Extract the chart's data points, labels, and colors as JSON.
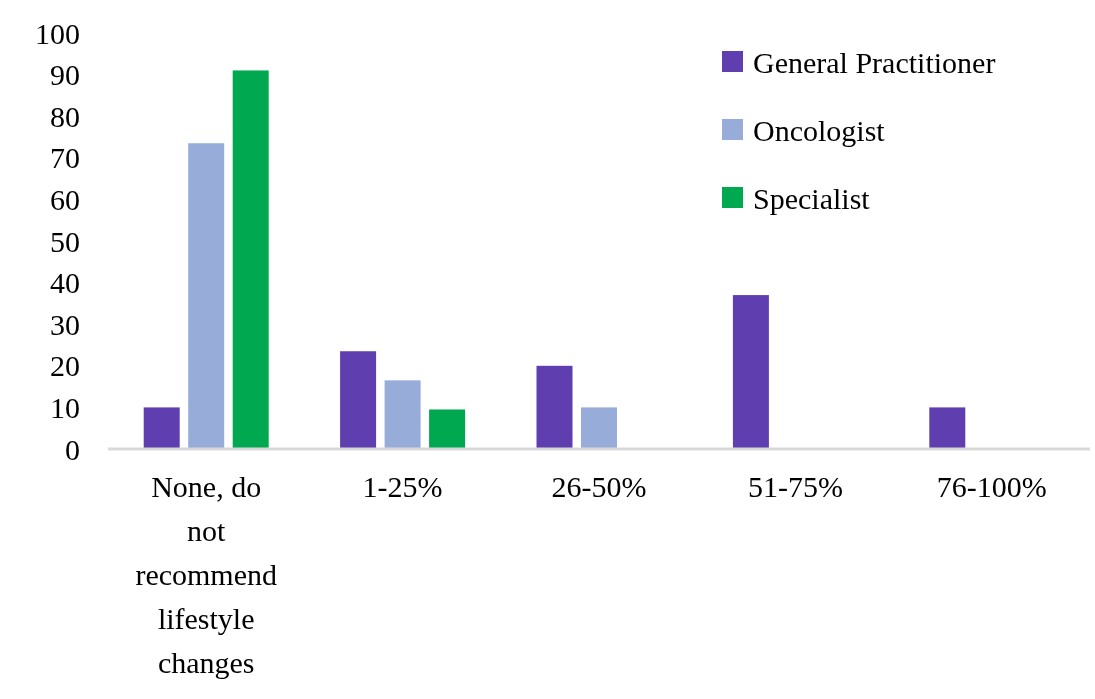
{
  "chart_data": {
    "type": "bar",
    "categories": [
      "None, do not recommend lifestyle changes",
      "1-25%",
      "26-50%",
      "51-75%",
      "76-100%"
    ],
    "series": [
      {
        "name": "General Practitioner",
        "color": "#5f3faf",
        "values": [
          10,
          23.5,
          20,
          37,
          10
        ]
      },
      {
        "name": "Oncologist",
        "color": "#97acd8",
        "values": [
          73.5,
          16.5,
          10,
          0,
          0
        ]
      },
      {
        "name": "Specialist",
        "color": "#00a84f",
        "values": [
          91,
          9.5,
          0,
          0,
          0
        ]
      }
    ],
    "ylim": [
      0,
      100
    ],
    "yticks": [
      0,
      10,
      20,
      30,
      40,
      50,
      60,
      70,
      80,
      90,
      100
    ],
    "grid": false,
    "legend": "top right"
  }
}
